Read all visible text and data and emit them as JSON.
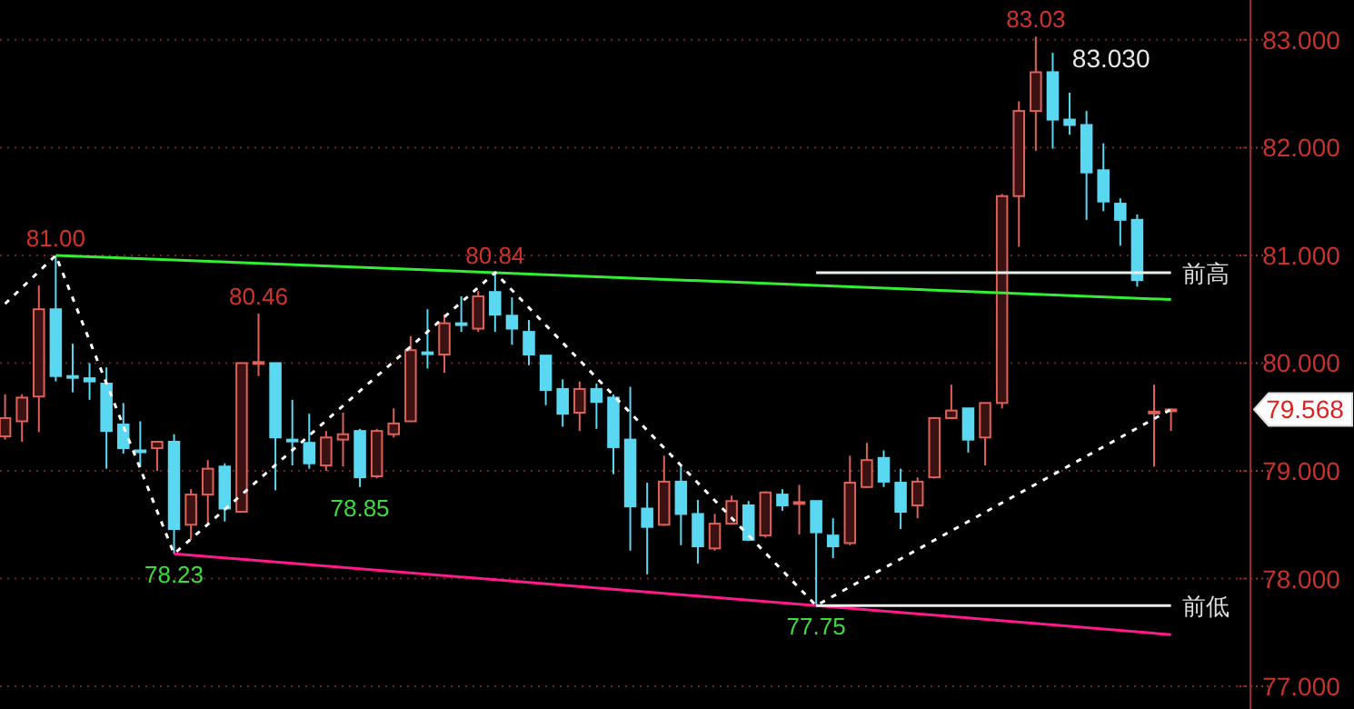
{
  "chart_data": {
    "type": "candlestick",
    "ylim": [
      76.79,
      83.37
    ],
    "yticks": [
      {
        "value": 77,
        "label": "77.000"
      },
      {
        "value": 78,
        "label": "78.000"
      },
      {
        "value": 79,
        "label": "79.000"
      },
      {
        "value": 80,
        "label": "80.000"
      },
      {
        "value": 81,
        "label": "81.000"
      },
      {
        "value": 82,
        "label": "82.000"
      },
      {
        "value": 83,
        "label": "83.000"
      }
    ],
    "tick_labels": "y",
    "grid": "y",
    "legend": false,
    "categories": [
      null,
      null,
      null,
      null,
      null,
      null,
      null,
      null,
      null,
      null,
      null,
      null,
      null,
      null,
      null,
      null,
      null,
      null,
      null,
      null,
      null,
      null,
      null,
      null,
      null,
      null,
      null,
      null,
      null,
      null,
      null,
      null,
      null,
      null,
      null,
      null,
      null,
      null,
      null,
      null,
      null,
      null,
      null,
      null,
      null,
      null,
      null,
      null,
      null,
      null,
      null,
      null,
      null,
      null,
      null,
      null,
      null,
      null,
      null,
      null,
      null,
      null,
      null,
      null,
      null,
      null,
      null,
      null,
      null,
      null
    ],
    "ohlc": [
      [
        79.32,
        79.71,
        79.29,
        79.49
      ],
      [
        79.46,
        79.71,
        79.27,
        79.68
      ],
      [
        79.69,
        80.72,
        79.36,
        80.5
      ],
      [
        80.5,
        81.0,
        79.83,
        79.88
      ],
      [
        79.88,
        80.18,
        79.73,
        79.87
      ],
      [
        79.86,
        80.0,
        79.66,
        79.83
      ],
      [
        79.81,
        79.96,
        79.02,
        79.37
      ],
      [
        79.43,
        79.63,
        79.16,
        79.21
      ],
      [
        79.19,
        79.46,
        79.04,
        79.18
      ],
      [
        79.21,
        79.27,
        79.0,
        79.27
      ],
      [
        79.27,
        79.34,
        78.23,
        78.46
      ],
      [
        78.5,
        78.83,
        78.36,
        78.78
      ],
      [
        78.78,
        79.1,
        78.51,
        79.02
      ],
      [
        79.04,
        79.07,
        78.53,
        78.65
      ],
      [
        78.62,
        80.0,
        78.62,
        80.0
      ],
      [
        80.0,
        80.46,
        79.88,
        80.01
      ],
      [
        80.0,
        80.0,
        78.82,
        79.31
      ],
      [
        79.29,
        79.66,
        79.05,
        79.28
      ],
      [
        79.26,
        79.53,
        79.02,
        79.07
      ],
      [
        79.05,
        79.37,
        79.0,
        79.31
      ],
      [
        79.29,
        79.54,
        79.04,
        79.34
      ],
      [
        79.37,
        79.39,
        78.85,
        78.94
      ],
      [
        78.95,
        79.39,
        78.93,
        79.37
      ],
      [
        79.34,
        79.58,
        79.31,
        79.44
      ],
      [
        79.46,
        80.25,
        79.46,
        80.12
      ],
      [
        80.1,
        80.5,
        79.95,
        80.09
      ],
      [
        80.08,
        80.45,
        79.91,
        80.37
      ],
      [
        80.37,
        80.62,
        80.29,
        80.36
      ],
      [
        80.32,
        80.67,
        80.29,
        80.62
      ],
      [
        80.66,
        80.84,
        80.29,
        80.45
      ],
      [
        80.44,
        80.61,
        80.17,
        80.32
      ],
      [
        80.29,
        80.4,
        79.98,
        80.08
      ],
      [
        80.07,
        80.07,
        79.61,
        79.75
      ],
      [
        79.76,
        79.85,
        79.41,
        79.53
      ],
      [
        79.54,
        79.83,
        79.37,
        79.76
      ],
      [
        79.76,
        79.81,
        79.39,
        79.64
      ],
      [
        79.68,
        79.71,
        78.97,
        79.22
      ],
      [
        79.29,
        79.78,
        78.26,
        78.67
      ],
      [
        78.65,
        78.89,
        78.04,
        78.48
      ],
      [
        78.5,
        79.14,
        78.49,
        78.9
      ],
      [
        78.9,
        79.04,
        78.31,
        78.6
      ],
      [
        78.6,
        78.73,
        78.14,
        78.3
      ],
      [
        78.28,
        78.6,
        78.26,
        78.51
      ],
      [
        78.51,
        78.77,
        78.5,
        78.72
      ],
      [
        78.68,
        78.72,
        78.35,
        78.36
      ],
      [
        78.4,
        78.81,
        78.38,
        78.8
      ],
      [
        78.78,
        78.83,
        78.63,
        78.68
      ],
      [
        78.7,
        78.87,
        78.41,
        78.71
      ],
      [
        78.72,
        78.72,
        77.75,
        78.43
      ],
      [
        78.4,
        78.56,
        78.19,
        78.3
      ],
      [
        78.33,
        79.14,
        78.31,
        78.89
      ],
      [
        78.85,
        79.26,
        78.84,
        79.1
      ],
      [
        79.12,
        79.19,
        78.85,
        78.9
      ],
      [
        78.89,
        79.02,
        78.46,
        78.62
      ],
      [
        78.68,
        78.94,
        78.56,
        78.9
      ],
      [
        78.94,
        79.5,
        78.93,
        79.49
      ],
      [
        79.49,
        79.8,
        79.49,
        79.56
      ],
      [
        79.58,
        79.58,
        79.17,
        79.29
      ],
      [
        79.31,
        79.63,
        79.05,
        79.63
      ],
      [
        79.63,
        81.57,
        79.58,
        81.55
      ],
      [
        81.55,
        82.43,
        81.08,
        82.34
      ],
      [
        82.34,
        83.03,
        81.97,
        82.7
      ],
      [
        82.7,
        82.88,
        81.99,
        82.26
      ],
      [
        82.26,
        82.51,
        82.12,
        82.21
      ],
      [
        82.21,
        82.34,
        81.33,
        81.77
      ],
      [
        81.79,
        82.04,
        81.41,
        81.5
      ],
      [
        81.48,
        81.53,
        81.09,
        81.33
      ],
      [
        81.33,
        81.38,
        80.71,
        80.77
      ],
      [
        79.54,
        79.8,
        79.04,
        79.55
      ],
      [
        79.56,
        79.58,
        79.37,
        79.57
      ]
    ],
    "colors": [
      "#e0605a",
      "#e0605a",
      "#e0605a",
      "#5ad8f2",
      "#5ad8f2",
      "#5ad8f2",
      "#5ad8f2",
      "#5ad8f2",
      "#5ad8f2",
      "#e0605a",
      "#5ad8f2",
      "#e0605a",
      "#e0605a",
      "#5ad8f2",
      "#e0605a",
      "#e0605a",
      "#5ad8f2",
      "#5ad8f2",
      "#5ad8f2",
      "#e0605a",
      "#e0605a",
      "#5ad8f2",
      "#e0605a",
      "#e0605a",
      "#e0605a",
      "#5ad8f2",
      "#e0605a",
      "#5ad8f2",
      "#e0605a",
      "#5ad8f2",
      "#5ad8f2",
      "#5ad8f2",
      "#5ad8f2",
      "#5ad8f2",
      "#e0605a",
      "#5ad8f2",
      "#5ad8f2",
      "#5ad8f2",
      "#5ad8f2",
      "#e0605a",
      "#5ad8f2",
      "#5ad8f2",
      "#e0605a",
      "#e0605a",
      "#5ad8f2",
      "#e0605a",
      "#5ad8f2",
      "#e0605a",
      "#5ad8f2",
      "#5ad8f2",
      "#e0605a",
      "#e0605a",
      "#5ad8f2",
      "#5ad8f2",
      "#e0605a",
      "#e0605a",
      "#e0605a",
      "#5ad8f2",
      "#e0605a",
      "#e0605a",
      "#e0605a",
      "#e0605a",
      "#5ad8f2",
      "#5ad8f2",
      "#5ad8f2",
      "#5ad8f2",
      "#5ad8f2",
      "#5ad8f2",
      "#e0605a",
      "#e0605a"
    ],
    "series": [
      {
        "type": "line",
        "color": "#33ee33",
        "values": [
          null,
          null,
          null,
          81.0,
          null,
          null,
          null,
          null,
          null,
          null,
          null,
          null,
          null,
          null,
          null,
          null,
          null,
          null,
          null,
          null,
          null,
          null,
          null,
          null,
          null,
          null,
          null,
          null,
          null,
          80.84,
          null,
          null,
          null,
          null,
          null,
          null,
          null,
          null,
          null,
          null,
          null,
          null,
          null,
          null,
          null,
          null,
          null,
          null,
          null,
          null,
          null,
          null,
          null,
          null,
          null,
          null,
          null,
          null,
          null,
          null,
          null,
          null,
          null,
          null,
          null,
          null,
          null,
          null,
          null,
          80.59
        ]
      },
      {
        "type": "line",
        "color": "#ff1a8c",
        "values": [
          null,
          null,
          null,
          null,
          null,
          null,
          null,
          null,
          null,
          null,
          78.23,
          null,
          null,
          null,
          null,
          null,
          null,
          null,
          null,
          null,
          null,
          null,
          null,
          null,
          null,
          null,
          null,
          null,
          null,
          null,
          null,
          null,
          null,
          null,
          null,
          null,
          null,
          null,
          null,
          null,
          null,
          null,
          null,
          null,
          null,
          null,
          null,
          null,
          77.75,
          null,
          null,
          null,
          null,
          null,
          null,
          null,
          null,
          null,
          null,
          null,
          null,
          null,
          null,
          null,
          null,
          null,
          null,
          null,
          null,
          77.48
        ]
      },
      {
        "type": "line",
        "color": "#ffffff",
        "line_style": "dashed",
        "values": [
          80.55,
          null,
          null,
          81.0,
          null,
          null,
          null,
          null,
          null,
          null,
          78.23,
          null,
          null,
          null,
          null,
          null,
          null,
          null,
          null,
          null,
          null,
          null,
          null,
          null,
          null,
          null,
          null,
          null,
          null,
          80.84,
          null,
          null,
          null,
          null,
          null,
          null,
          null,
          null,
          null,
          null,
          null,
          null,
          null,
          null,
          null,
          null,
          null,
          null,
          77.75,
          null,
          null,
          null,
          null,
          null,
          null,
          null,
          null,
          null,
          null,
          null,
          null,
          null,
          null,
          null,
          null,
          null,
          null,
          null,
          null,
          79.57
        ]
      },
      {
        "type": "line",
        "name": "前高",
        "color": "#e8f0e8",
        "values": [
          null,
          null,
          null,
          null,
          null,
          null,
          null,
          null,
          null,
          null,
          null,
          null,
          null,
          null,
          null,
          null,
          null,
          null,
          null,
          null,
          null,
          null,
          null,
          null,
          null,
          null,
          null,
          null,
          null,
          null,
          null,
          null,
          null,
          null,
          null,
          null,
          null,
          null,
          null,
          null,
          null,
          null,
          null,
          null,
          null,
          null,
          null,
          null,
          80.84,
          80.84,
          80.84,
          80.84,
          80.84,
          80.84,
          80.84,
          80.84,
          80.84,
          80.84,
          80.84,
          80.84,
          80.84,
          80.84,
          80.84,
          80.84,
          80.84,
          80.84,
          80.84,
          80.84,
          80.84,
          80.84
        ]
      },
      {
        "type": "line",
        "name": "前低",
        "color": "#e8f0e8",
        "values": [
          null,
          null,
          null,
          null,
          null,
          null,
          null,
          null,
          null,
          null,
          null,
          null,
          null,
          null,
          null,
          null,
          null,
          null,
          null,
          null,
          null,
          null,
          null,
          null,
          null,
          null,
          null,
          null,
          null,
          null,
          null,
          null,
          null,
          null,
          null,
          null,
          null,
          null,
          null,
          null,
          null,
          null,
          null,
          null,
          null,
          null,
          null,
          null,
          77.75,
          77.75,
          77.75,
          77.75,
          77.75,
          77.75,
          77.75,
          77.75,
          77.75,
          77.75,
          77.75,
          77.75,
          77.75,
          77.75,
          77.75,
          77.75,
          77.75,
          77.75,
          77.75,
          77.75,
          77.75,
          77.75
        ]
      }
    ],
    "annotations": [
      {
        "text": "81.00",
        "y": 81.0
      },
      {
        "text": "78.23",
        "y": 78.23
      },
      {
        "text": "80.46",
        "y": 80.46
      },
      {
        "text": "78.85",
        "y": 78.85
      },
      {
        "text": "80.84",
        "y": 80.84
      },
      {
        "text": "77.75",
        "y": 77.75
      },
      {
        "text": "83.03",
        "y": 83.03
      },
      "83.030",
      "79.568"
    ]
  }
}
